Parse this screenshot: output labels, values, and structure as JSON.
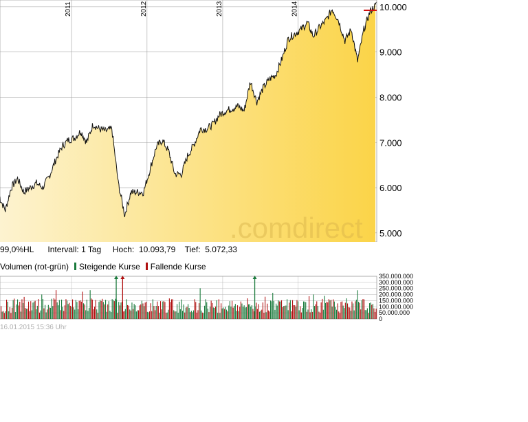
{
  "info": {
    "range_label": "99,0%HL",
    "interval_label": "Intervall: 1 Tag",
    "high_label": "Hoch:",
    "high_value": "10.093,79",
    "low_label": "Tief:",
    "low_value": "5.072,33"
  },
  "legend": {
    "volume_label": "Volumen (rot-grün)",
    "rising_label": "Steigende Kurse",
    "falling_label": "Fallende Kurse"
  },
  "timestamp": "16.01.2015 15:36 Uhr",
  "watermark": ".comdirect",
  "colors": {
    "rising": "#1a7a3c",
    "falling": "#b01010",
    "fill_light": "#fdf3d0",
    "fill_dark": "#fbd448",
    "grid": "#a0a0a0",
    "high_marker": "#d01010"
  },
  "chart_data": [
    {
      "type": "area",
      "x_tick_labels": [
        "2011",
        "2012",
        "2013",
        "2014"
      ],
      "y_tick_labels": [
        "5.000",
        "6.000",
        "7.000",
        "8.000",
        "9.000",
        "10.000"
      ],
      "y_ticks": [
        5000,
        6000,
        7000,
        8000,
        9000,
        10000
      ],
      "ylim": [
        4800,
        10150
      ],
      "xlim": [
        "2010-01-20",
        "2015-01-16"
      ],
      "x": [
        "2010-01",
        "2010-02",
        "2010-03",
        "2010-04",
        "2010-05",
        "2010-06",
        "2010-07",
        "2010-08",
        "2010-09",
        "2010-10",
        "2010-11",
        "2010-12",
        "2011-01",
        "2011-02",
        "2011-03",
        "2011-04",
        "2011-05",
        "2011-06",
        "2011-07",
        "2011-08",
        "2011-09",
        "2011-10",
        "2011-11",
        "2011-12",
        "2012-01",
        "2012-02",
        "2012-03",
        "2012-04",
        "2012-05",
        "2012-06",
        "2012-07",
        "2012-08",
        "2012-09",
        "2012-10",
        "2012-11",
        "2012-12",
        "2013-01",
        "2013-02",
        "2013-03",
        "2013-04",
        "2013-05",
        "2013-06",
        "2013-07",
        "2013-08",
        "2013-09",
        "2013-10",
        "2013-11",
        "2013-12",
        "2014-01",
        "2014-02",
        "2014-03",
        "2014-04",
        "2014-05",
        "2014-06",
        "2014-07",
        "2014-08",
        "2014-09",
        "2014-10",
        "2014-11",
        "2014-12",
        "2015-01"
      ],
      "values": [
        5800,
        5500,
        6000,
        6200,
        5900,
        6000,
        6100,
        6000,
        6250,
        6600,
        6900,
        7050,
        7100,
        7250,
        7000,
        7400,
        7300,
        7250,
        7300,
        6100,
        5400,
        5900,
        5900,
        5900,
        6400,
        6900,
        7050,
        6800,
        6300,
        6300,
        6700,
        6950,
        7300,
        7300,
        7400,
        7600,
        7700,
        7750,
        7800,
        7700,
        8350,
        7900,
        8200,
        8400,
        8500,
        8850,
        9300,
        9400,
        9500,
        9650,
        9350,
        9550,
        9700,
        9950,
        9700,
        9250,
        9500,
        8800,
        9500,
        9900,
        10050
      ],
      "series": [
        {
          "values_ref": "values"
        }
      ],
      "grid": true,
      "legend": "none"
    },
    {
      "type": "bar",
      "y_tick_labels": [
        "350.000.000",
        "300.000.000",
        "250.000.000",
        "200.000.000",
        "150.000.000",
        "100.000.000",
        "50.000.000",
        "0"
      ],
      "y_ticks": [
        350000000,
        300000000,
        250000000,
        200000000,
        150000000,
        100000000,
        50000000,
        0
      ],
      "ylim": [
        0,
        350000000
      ],
      "xlim": [
        "2010-01-20",
        "2015-01-16"
      ],
      "typical_volume": [
        120000000,
        170000000
      ],
      "spikes_marked_above_axis": [
        "2011-08",
        "2011-09",
        "2013-06"
      ],
      "grid": true
    }
  ]
}
